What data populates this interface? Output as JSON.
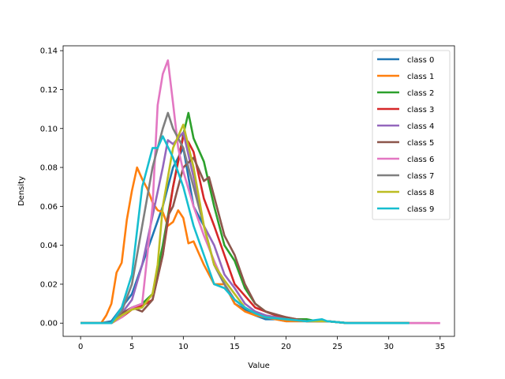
{
  "chart_data": {
    "type": "line",
    "title": "",
    "xlabel": "Value",
    "ylabel": "Density",
    "xlim": [
      -1.7,
      36.4
    ],
    "ylim": [
      -0.0068,
      0.1425
    ],
    "xticks": [
      "0",
      "5",
      "10",
      "15",
      "20",
      "25",
      "30",
      "35"
    ],
    "yticks": [
      "0.00",
      "0.02",
      "0.04",
      "0.06",
      "0.08",
      "0.10",
      "0.12",
      "0.14"
    ],
    "xtick_values": [
      0,
      5,
      10,
      15,
      20,
      25,
      30,
      35
    ],
    "ytick_values": [
      0.0,
      0.02,
      0.04,
      0.06,
      0.08,
      0.1,
      0.12,
      0.14
    ],
    "grid": false,
    "legend_position": "upper right",
    "series": [
      {
        "name": "class 0",
        "color": "#1f77b4",
        "x": [
          0,
          2,
          3,
          4,
          5,
          6,
          7,
          8,
          9,
          10,
          11,
          12,
          13,
          14,
          15,
          16,
          17,
          18,
          19,
          20,
          22,
          24,
          26,
          28,
          30,
          32
        ],
        "y": [
          0,
          0,
          0.001,
          0.008,
          0.015,
          0.03,
          0.045,
          0.06,
          0.08,
          0.09,
          0.06,
          0.05,
          0.03,
          0.02,
          0.01,
          0.007,
          0.004,
          0.002,
          0.002,
          0.001,
          0.001,
          0.001,
          0,
          0,
          0,
          0
        ]
      },
      {
        "name": "class 1",
        "color": "#ff7f0e",
        "x": [
          0,
          1,
          2,
          2.5,
          3,
          3.5,
          4,
          4.5,
          5,
          5.5,
          6,
          6.5,
          7,
          7.5,
          8,
          8.5,
          9,
          9.5,
          10,
          10.5,
          11,
          11.5,
          12,
          12.5,
          13,
          14,
          15,
          16,
          17,
          18,
          20,
          22,
          24,
          26,
          28,
          30,
          32
        ],
        "y": [
          0,
          0,
          0,
          0.004,
          0.01,
          0.026,
          0.031,
          0.053,
          0.068,
          0.08,
          0.074,
          0.069,
          0.062,
          0.058,
          0.057,
          0.05,
          0.052,
          0.058,
          0.054,
          0.041,
          0.042,
          0.036,
          0.03,
          0.025,
          0.02,
          0.02,
          0.01,
          0.006,
          0.004,
          0.003,
          0.001,
          0.001,
          0.001,
          0,
          0,
          0,
          0
        ]
      },
      {
        "name": "class 2",
        "color": "#2ca02c",
        "x": [
          0,
          2,
          3,
          4,
          5,
          6,
          7,
          8,
          9,
          10,
          10.5,
          11,
          12,
          13,
          14,
          15,
          16,
          17,
          18,
          19,
          20,
          21,
          22,
          23,
          24,
          26,
          28,
          30,
          32
        ],
        "y": [
          0,
          0,
          0,
          0.004,
          0.008,
          0.01,
          0.015,
          0.04,
          0.07,
          0.097,
          0.108,
          0.095,
          0.083,
          0.06,
          0.04,
          0.032,
          0.018,
          0.01,
          0.006,
          0.004,
          0.002,
          0.002,
          0.002,
          0.001,
          0.001,
          0,
          0,
          0,
          0
        ]
      },
      {
        "name": "class 3",
        "color": "#d62728",
        "x": [
          0,
          2,
          3,
          4,
          5,
          6,
          7,
          8,
          9,
          10,
          10.5,
          11,
          12,
          13,
          14,
          15,
          16,
          17,
          18,
          19,
          20,
          21,
          22,
          24,
          26,
          28,
          30,
          32
        ],
        "y": [
          0,
          0,
          0,
          0.003,
          0.007,
          0.009,
          0.012,
          0.035,
          0.07,
          0.096,
          0.093,
          0.088,
          0.064,
          0.05,
          0.035,
          0.02,
          0.014,
          0.008,
          0.006,
          0.004,
          0.003,
          0.002,
          0.001,
          0.001,
          0,
          0,
          0,
          0
        ]
      },
      {
        "name": "class 4",
        "color": "#9467bd",
        "x": [
          0,
          2,
          3,
          4,
          5,
          6,
          7,
          8,
          8.5,
          9,
          10,
          11,
          12,
          13,
          14,
          15,
          16,
          17,
          18,
          19,
          20,
          22,
          24,
          26,
          28,
          30,
          32
        ],
        "y": [
          0,
          0,
          0,
          0.005,
          0.012,
          0.03,
          0.055,
          0.08,
          0.094,
          0.092,
          0.098,
          0.075,
          0.05,
          0.04,
          0.025,
          0.018,
          0.01,
          0.006,
          0.004,
          0.003,
          0.002,
          0.001,
          0.001,
          0,
          0,
          0,
          0
        ]
      },
      {
        "name": "class 5",
        "color": "#8c564b",
        "x": [
          0,
          2,
          3,
          4,
          5,
          6,
          7,
          8,
          8.5,
          9,
          10,
          11,
          12,
          12.5,
          13,
          14,
          15,
          16,
          17,
          18,
          20,
          22,
          24,
          26,
          28,
          30,
          32,
          34
        ],
        "y": [
          0,
          0,
          0,
          0.005,
          0.008,
          0.006,
          0.012,
          0.035,
          0.055,
          0.06,
          0.08,
          0.085,
          0.073,
          0.075,
          0.065,
          0.045,
          0.035,
          0.02,
          0.01,
          0.006,
          0.003,
          0.001,
          0.001,
          0,
          0,
          0,
          0,
          0
        ]
      },
      {
        "name": "class 6",
        "color": "#e377c2",
        "x": [
          0,
          2,
          3,
          4,
          5,
          6,
          7,
          7.5,
          8,
          8.5,
          9,
          9.5,
          10,
          11,
          12,
          13,
          14,
          15,
          16,
          17,
          18,
          20,
          22,
          24,
          26,
          28,
          30,
          32,
          34,
          35
        ],
        "y": [
          0,
          0,
          0,
          0.003,
          0.008,
          0.01,
          0.06,
          0.112,
          0.128,
          0.135,
          0.113,
          0.09,
          0.078,
          0.06,
          0.045,
          0.032,
          0.02,
          0.012,
          0.008,
          0.005,
          0.003,
          0.002,
          0.001,
          0.001,
          0,
          0,
          0,
          0,
          0,
          0
        ]
      },
      {
        "name": "class 7",
        "color": "#7f7f7f",
        "x": [
          0,
          2,
          3,
          4,
          5,
          6,
          7,
          8,
          8.5,
          9,
          10,
          11,
          12,
          13,
          14,
          15,
          16,
          17,
          18,
          20,
          22,
          24,
          26,
          28,
          30,
          32
        ],
        "y": [
          0,
          0,
          0,
          0.006,
          0.02,
          0.05,
          0.08,
          0.1,
          0.108,
          0.1,
          0.09,
          0.07,
          0.05,
          0.03,
          0.02,
          0.012,
          0.008,
          0.005,
          0.003,
          0.002,
          0.001,
          0.001,
          0,
          0,
          0,
          0
        ]
      },
      {
        "name": "class 8",
        "color": "#bcbd22",
        "x": [
          0,
          2,
          3,
          4,
          5,
          6,
          7,
          7.5,
          8,
          9,
          10,
          11,
          12,
          13,
          14,
          15,
          16,
          17,
          18,
          20,
          22,
          24,
          26,
          28,
          30,
          32
        ],
        "y": [
          0,
          0,
          0,
          0.004,
          0.007,
          0.008,
          0.015,
          0.03,
          0.06,
          0.09,
          0.102,
          0.08,
          0.05,
          0.03,
          0.022,
          0.015,
          0.008,
          0.005,
          0.003,
          0.002,
          0.001,
          0.001,
          0,
          0,
          0,
          0
        ]
      },
      {
        "name": "class 9",
        "color": "#17becf",
        "x": [
          0,
          2,
          3,
          4,
          5,
          6,
          6.5,
          7,
          7.5,
          8,
          9,
          10,
          11,
          12,
          13,
          14,
          15,
          16,
          17,
          18,
          20,
          22,
          23.5,
          24,
          26,
          28,
          30,
          32
        ],
        "y": [
          0,
          0,
          0,
          0.008,
          0.025,
          0.07,
          0.08,
          0.09,
          0.09,
          0.096,
          0.085,
          0.07,
          0.05,
          0.035,
          0.02,
          0.018,
          0.012,
          0.008,
          0.005,
          0.003,
          0.002,
          0.001,
          0.002,
          0.001,
          0,
          0,
          0,
          0
        ]
      }
    ]
  }
}
